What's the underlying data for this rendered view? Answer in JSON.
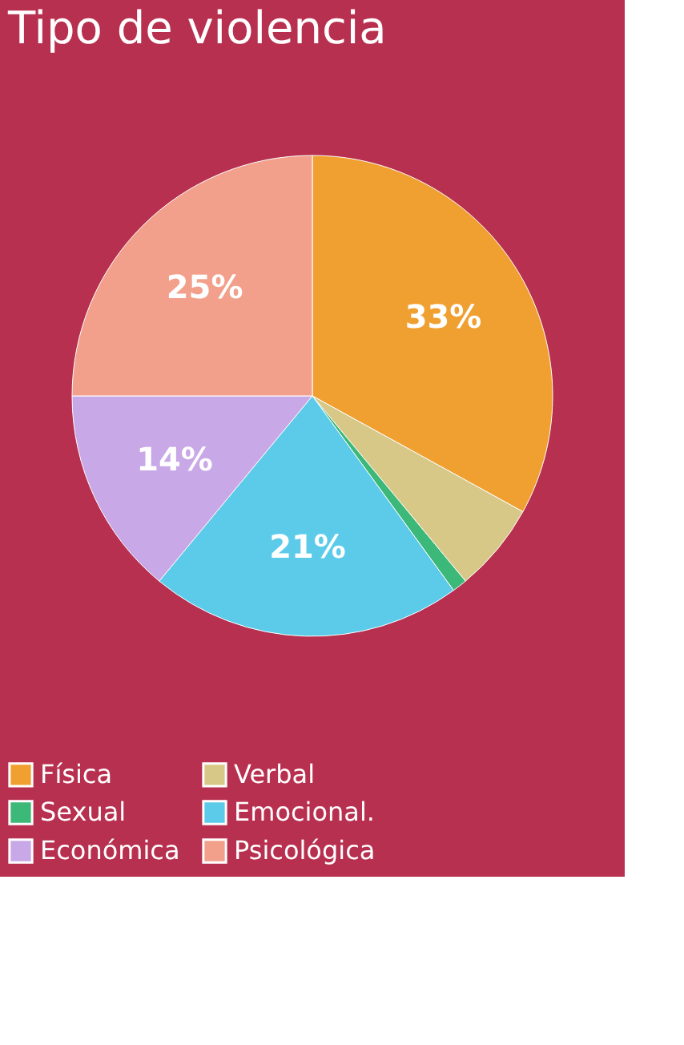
{
  "chart_data": {
    "type": "pie",
    "title": "Tipo de violencia",
    "categories": [
      "Física",
      "Verbal",
      "Sexual",
      "Emocional.",
      "Económica",
      "Psicológica"
    ],
    "values": [
      33,
      6,
      1,
      21,
      14,
      25
    ],
    "colors": [
      "#f0a030",
      "#d8c888",
      "#3cb878",
      "#5ccbea",
      "#c8a8e6",
      "#f2a08c"
    ],
    "value_labels": [
      "33%",
      null,
      null,
      "21%",
      "14%",
      "25%"
    ],
    "legend": "bottom"
  }
}
